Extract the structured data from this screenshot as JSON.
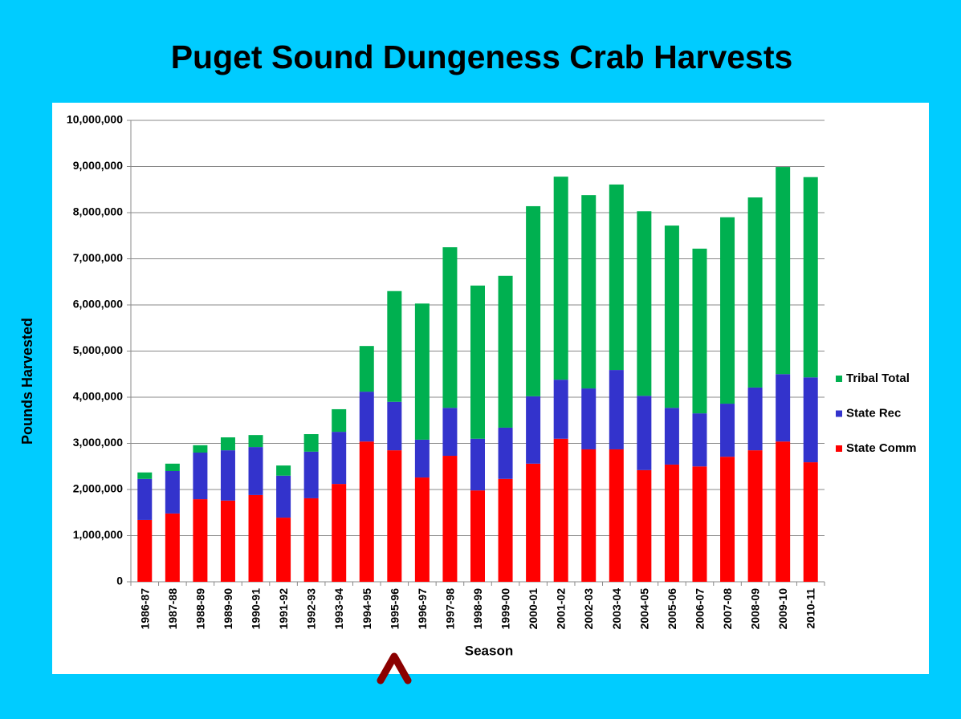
{
  "chart_data": {
    "type": "bar",
    "stacked": true,
    "title": "Puget Sound Dungeness Crab Harvests",
    "x_label": "Season",
    "y_label": "Pounds Harvested",
    "categories": [
      "1986-87",
      "1987-88",
      "1988-89",
      "1989-90",
      "1990-91",
      "1991-92",
      "1992-93",
      "1993-94",
      "1994-95",
      "1995-96",
      "1996-97",
      "1997-98",
      "1998-99",
      "1999-00",
      "2000-01",
      "2001-02",
      "2002-03",
      "2003-04",
      "2004-05",
      "2005-06",
      "2006-07",
      "2007-08",
      "2008-09",
      "2009-10",
      "2010-11"
    ],
    "series": [
      {
        "name": "State Comm",
        "color": "#ff0000",
        "values": [
          1340000,
          1480000,
          1790000,
          1760000,
          1880000,
          1390000,
          1810000,
          2120000,
          3040000,
          2850000,
          2260000,
          2730000,
          1980000,
          2230000,
          2560000,
          3100000,
          2870000,
          2870000,
          2420000,
          2540000,
          2500000,
          2710000,
          2850000,
          3040000,
          2590000
        ]
      },
      {
        "name": "State Rec",
        "color": "#3333cc",
        "values": [
          890000,
          920000,
          1010000,
          1090000,
          1040000,
          910000,
          1010000,
          1130000,
          1080000,
          1050000,
          820000,
          1040000,
          1120000,
          1110000,
          1460000,
          1280000,
          1320000,
          1720000,
          1610000,
          1230000,
          1150000,
          1150000,
          1360000,
          1460000,
          1840000
        ]
      },
      {
        "name": "Tribal Total",
        "color": "#00b050",
        "values": [
          140000,
          160000,
          160000,
          280000,
          260000,
          220000,
          380000,
          490000,
          990000,
          2400000,
          2950000,
          3480000,
          3320000,
          3290000,
          4120000,
          4400000,
          4190000,
          4020000,
          4000000,
          3950000,
          3570000,
          4040000,
          4120000,
          4490000,
          4340000
        ]
      }
    ],
    "ylim": [
      0,
      10000000
    ],
    "yticks": [
      0,
      {
        "value": 1000000,
        "label": "1,000,000"
      },
      {
        "value": 2000000,
        "label": "2,000,000"
      },
      {
        "value": 3000000,
        "label": "3,000,000"
      },
      {
        "value": 4000000,
        "label": "4,000,000"
      },
      {
        "value": 5000000,
        "label": "5,000,000"
      },
      {
        "value": 6000000,
        "label": "6,000,000"
      },
      {
        "value": 7000000,
        "label": "7,000,000"
      },
      {
        "value": 8000000,
        "label": "8,000,000"
      },
      {
        "value": 9000000,
        "label": "9,000,000"
      },
      {
        "value": 10000000,
        "label": "10,000,000"
      }
    ],
    "grid": true,
    "legend": "right"
  }
}
